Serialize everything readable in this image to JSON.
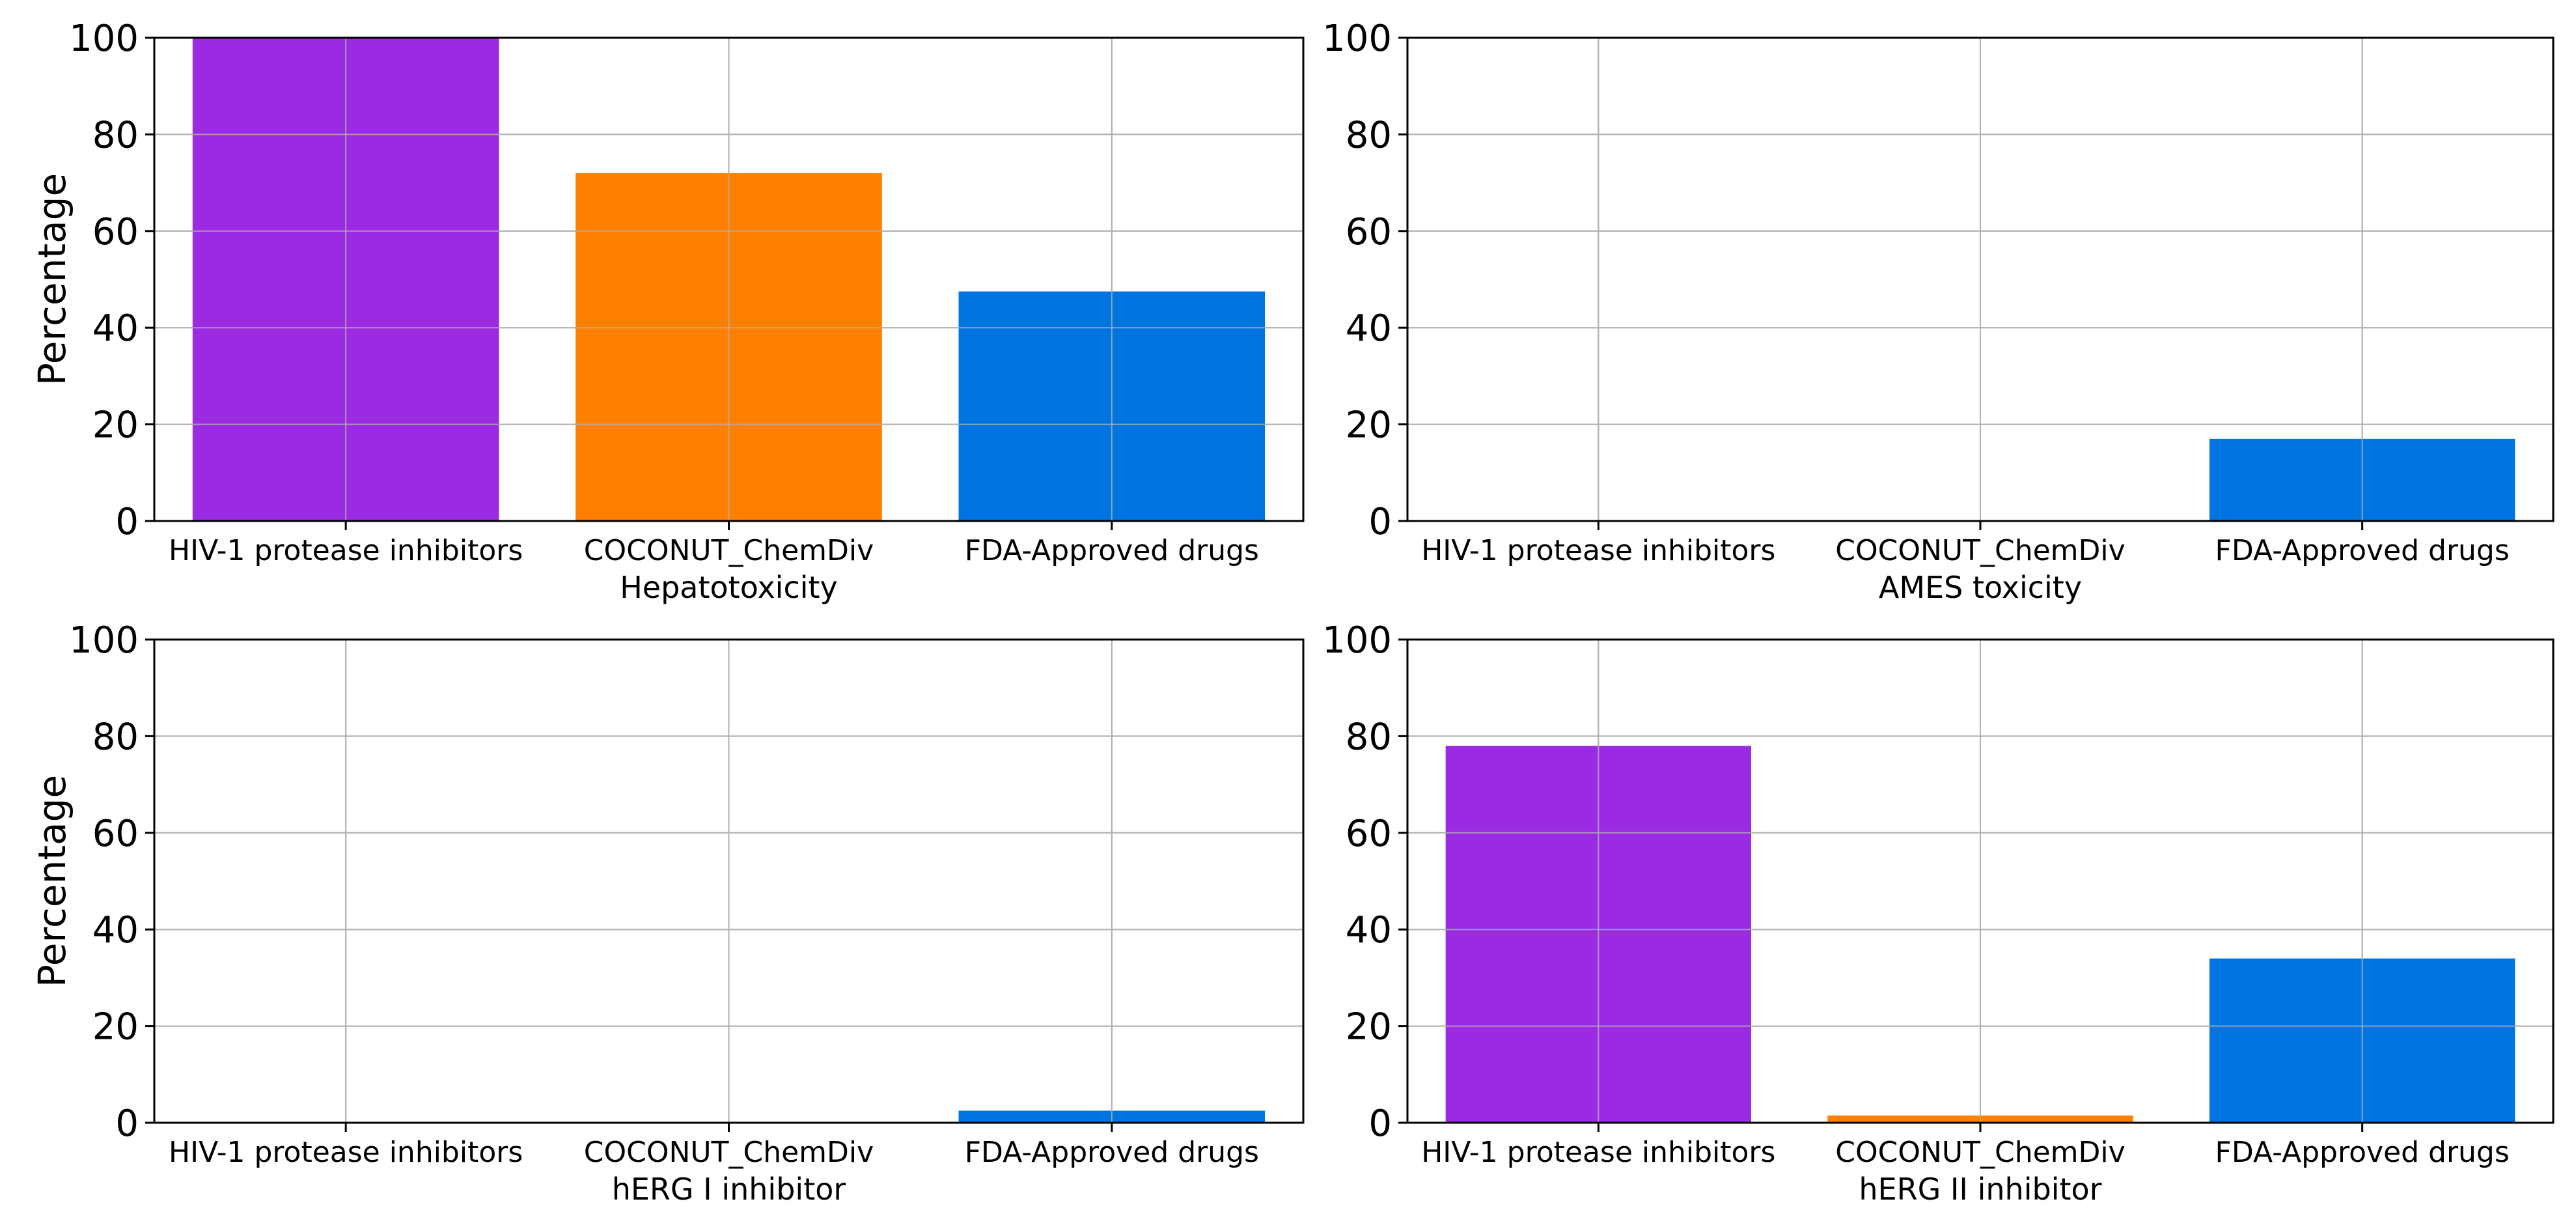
{
  "colors": {
    "HIV-1 protease inhibitors": "#9a2be2",
    "COCONUT_ChemDiv": "#ff8000",
    "FDA-Approved drugs": "#0074e0"
  },
  "chart_data": [
    {
      "type": "bar",
      "categories": [
        "HIV-1 protease inhibitors",
        "COCONUT_ChemDiv",
        "FDA-Approved drugs"
      ],
      "values": [
        100,
        72,
        47.5
      ],
      "xlabel": "Hepatotoxicity",
      "ylabel": "Percentage",
      "ylim": [
        0,
        100
      ],
      "yticks": [
        0,
        20,
        40,
        60,
        80,
        100
      ],
      "grid": true
    },
    {
      "type": "bar",
      "categories": [
        "HIV-1 protease inhibitors",
        "COCONUT_ChemDiv",
        "FDA-Approved drugs"
      ],
      "values": [
        0,
        0,
        17
      ],
      "xlabel": "AMES toxicity",
      "ylabel": "",
      "ylim": [
        0,
        100
      ],
      "yticks": [
        0,
        20,
        40,
        60,
        80,
        100
      ],
      "grid": true
    },
    {
      "type": "bar",
      "categories": [
        "HIV-1 protease inhibitors",
        "COCONUT_ChemDiv",
        "FDA-Approved drugs"
      ],
      "values": [
        0,
        0,
        2.5
      ],
      "xlabel": "hERG I inhibitor",
      "ylabel": "Percentage",
      "ylim": [
        0,
        100
      ],
      "yticks": [
        0,
        20,
        40,
        60,
        80,
        100
      ],
      "grid": true
    },
    {
      "type": "bar",
      "categories": [
        "HIV-1 protease inhibitors",
        "COCONUT_ChemDiv",
        "FDA-Approved drugs"
      ],
      "values": [
        78,
        1.5,
        34
      ],
      "xlabel": "hERG II inhibitor",
      "ylabel": "",
      "ylim": [
        0,
        100
      ],
      "yticks": [
        0,
        20,
        40,
        60,
        80,
        100
      ],
      "grid": true
    }
  ]
}
